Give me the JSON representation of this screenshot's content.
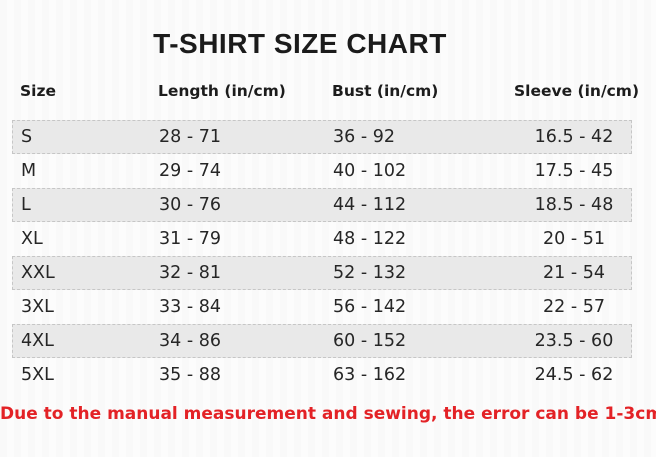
{
  "title": "T-SHIRT SIZE CHART",
  "note": "Due to the manual measurement and sewing, the error can be 1-3cm",
  "colors": {
    "title_text": "#1b1b1b",
    "cell_text": "#262626",
    "row_shade": "#e9e9e9",
    "row_border": "#c6c6c6",
    "note_red": "#e32226",
    "background": "#fcfcfc"
  },
  "chart_data": {
    "type": "table",
    "title": "T-SHIRT SIZE CHART",
    "columns": [
      "Size",
      "Length (in/cm)",
      "Bust (in/cm)",
      "Sleeve (in/cm)"
    ],
    "rows": [
      {
        "size": "S",
        "length": "28 - 71",
        "bust": "36 - 92",
        "sleeve": "16.5 - 42"
      },
      {
        "size": "M",
        "length": "29 - 74",
        "bust": "40 - 102",
        "sleeve": "17.5 - 45"
      },
      {
        "size": "L",
        "length": "30 - 76",
        "bust": "44 - 112",
        "sleeve": "18.5 - 48"
      },
      {
        "size": "XL",
        "length": "31 - 79",
        "bust": "48 - 122",
        "sleeve": "20 - 51"
      },
      {
        "size": "XXL",
        "length": "32 - 81",
        "bust": "52 - 132",
        "sleeve": "21 - 54"
      },
      {
        "size": "3XL",
        "length": "33 - 84",
        "bust": "56 - 142",
        "sleeve": "22 - 57"
      },
      {
        "size": "4XL",
        "length": "34 - 86",
        "bust": "60 - 152",
        "sleeve": "23.5 - 60"
      },
      {
        "size": "5XL",
        "length": "35 - 88",
        "bust": "63 - 162",
        "sleeve": "24.5 - 62"
      }
    ],
    "note": "Due to the manual measurement and sewing, the error can be 1-3cm",
    "layout": {
      "shaded_row_indices": [
        0,
        2,
        4,
        6
      ],
      "grid": "off",
      "column_separators": "none"
    }
  }
}
